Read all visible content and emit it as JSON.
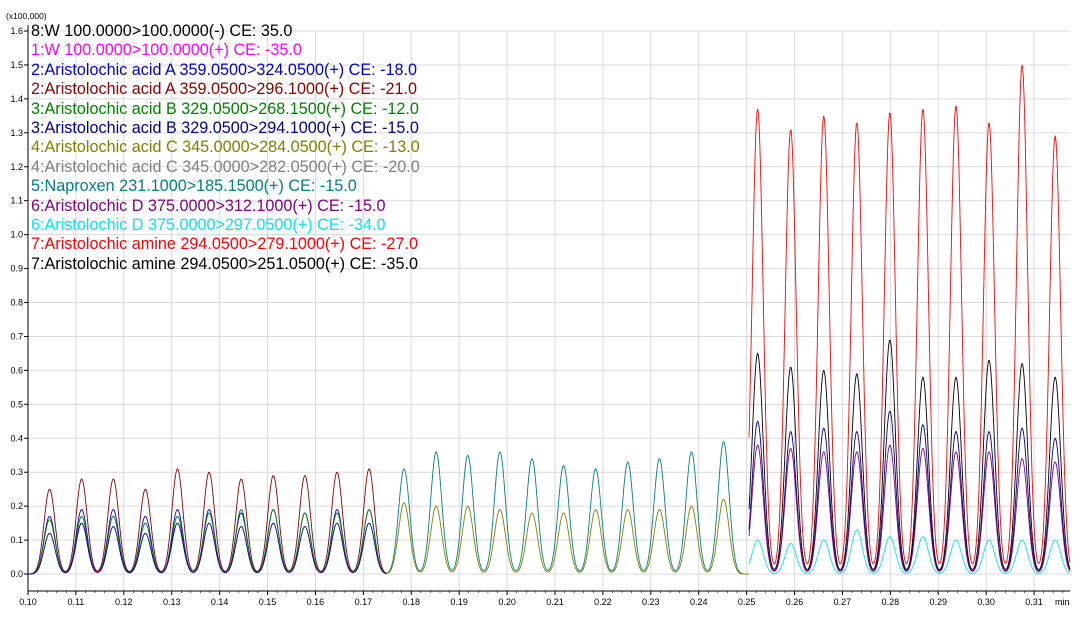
{
  "chart_data": {
    "type": "line",
    "multiplier_label": "(x100,000)",
    "x_unit_label": "min",
    "xlim": [
      0.1,
      0.3175
    ],
    "ylim": [
      -0.05,
      1.6
    ],
    "x_ticks": [
      "0.10",
      "0.11",
      "0.12",
      "0.13",
      "0.14",
      "0.15",
      "0.16",
      "0.17",
      "0.18",
      "0.19",
      "0.20",
      "0.21",
      "0.22",
      "0.23",
      "0.24",
      "0.25",
      "0.26",
      "0.27",
      "0.28",
      "0.29",
      "0.30",
      "0.31"
    ],
    "y_ticks": [
      "0.0",
      "0.1",
      "0.2",
      "0.3",
      "0.4",
      "0.5",
      "0.6",
      "0.7",
      "0.8",
      "0.9",
      "1.0",
      "1.1",
      "1.2",
      "1.3",
      "1.4",
      "1.5",
      "1.6"
    ],
    "grid": true,
    "legend": [
      {
        "label": "8:W 100.0000>100.0000(-) CE: 35.0",
        "color": "#000000"
      },
      {
        "label": "1:W 100.0000>100.0000(+) CE: -35.0",
        "color": "#ff00ff"
      },
      {
        "label": "2:Aristolochic acid A 359.0500>324.0500(+) CE: -18.0",
        "color": "#0000cc"
      },
      {
        "label": "2:Aristolochic acid A 359.0500>296.1000(+) CE: -21.0",
        "color": "#8b0000"
      },
      {
        "label": "3:Aristolochic acid B 329.0500>268.1500(+) CE: -12.0",
        "color": "#008000"
      },
      {
        "label": "3:Aristolochic acid B 329.0500>294.1000(+) CE: -15.0",
        "color": "#000080"
      },
      {
        "label": "4:Aristolochic acid C 345.0000>284.0500(+) CE: -13.0",
        "color": "#808000"
      },
      {
        "label": "4:Aristolochic acid C 345.0000>282.0500(+) CE: -20.0",
        "color": "#808080"
      },
      {
        "label": "5:Naproxen 231.1000>185.1500(+) CE: -15.0",
        "color": "#008080"
      },
      {
        "label": "6:Aristolochic D 375.0000>312.1000(+) CE: -15.0",
        "color": "#800080"
      },
      {
        "label": "6:Aristolochic D 375.0000>297.0500(+) CE: -34.0",
        "color": "#00e5ee"
      },
      {
        "label": "7:Aristolochic amine 294.0500>279.1000(+) CE: -27.0",
        "color": "#ff0000"
      },
      {
        "label": "7:Aristolochic amine 294.0500>251.0500(+) CE: -35.0",
        "color": "#000000"
      }
    ],
    "segments": [
      {
        "x_range": [
          0.1,
          0.1748
        ],
        "peak_x": [
          0.1045,
          0.1112,
          0.1178,
          0.1245,
          0.1312,
          0.1378,
          0.1445,
          0.1512,
          0.1578,
          0.1645,
          0.1712
        ],
        "series": [
          {
            "color": "#8b0000",
            "heights": [
              0.25,
              0.28,
              0.28,
              0.25,
              0.31,
              0.3,
              0.28,
              0.29,
              0.29,
              0.3,
              0.31
            ]
          },
          {
            "color": "#0000cc",
            "heights": [
              0.17,
              0.19,
              0.19,
              0.17,
              0.19,
              0.19,
              0.18,
              0.19,
              0.18,
              0.19,
              0.19
            ]
          },
          {
            "color": "#008000",
            "heights": [
              0.16,
              0.17,
              0.17,
              0.15,
              0.17,
              0.18,
              0.19,
              0.19,
              0.18,
              0.18,
              0.19
            ]
          },
          {
            "color": "#000080",
            "heights": [
              0.12,
              0.15,
              0.14,
              0.12,
              0.15,
              0.15,
              0.14,
              0.15,
              0.14,
              0.15,
              0.15
            ]
          }
        ]
      },
      {
        "x_range": [
          0.1748,
          0.2505
        ],
        "peak_x": [
          0.1785,
          0.1852,
          0.1918,
          0.1985,
          0.2052,
          0.2118,
          0.2185,
          0.2252,
          0.2318,
          0.2385,
          0.2452
        ],
        "series": [
          {
            "color": "#008080",
            "heights": [
              0.31,
              0.36,
              0.35,
              0.36,
              0.34,
              0.32,
              0.31,
              0.33,
              0.34,
              0.36,
              0.39
            ]
          },
          {
            "color": "#808000",
            "heights": [
              0.21,
              0.2,
              0.2,
              0.19,
              0.18,
              0.18,
              0.19,
              0.19,
              0.19,
              0.2,
              0.22
            ]
          }
        ]
      },
      {
        "x_range": [
          0.2505,
          0.3175
        ],
        "peak_x": [
          0.2523,
          0.2592,
          0.2661,
          0.273,
          0.2799,
          0.2868,
          0.2937,
          0.3006,
          0.3075,
          0.3144
        ],
        "series": [
          {
            "color": "#ff0000",
            "heights": [
              1.37,
              1.31,
              1.35,
              1.33,
              1.36,
              1.37,
              1.38,
              1.33,
              1.5,
              1.29
            ]
          },
          {
            "color": "#000000",
            "heights": [
              0.65,
              0.61,
              0.6,
              0.59,
              0.69,
              0.58,
              0.58,
              0.63,
              0.62,
              0.58
            ]
          },
          {
            "color": "#000080",
            "heights": [
              0.45,
              0.42,
              0.43,
              0.42,
              0.48,
              0.44,
              0.42,
              0.42,
              0.43,
              0.4
            ]
          },
          {
            "color": "#800080",
            "heights": [
              0.38,
              0.37,
              0.36,
              0.36,
              0.38,
              0.37,
              0.36,
              0.36,
              0.34,
              0.33
            ]
          },
          {
            "color": "#00e5ee",
            "heights": [
              0.1,
              0.09,
              0.1,
              0.13,
              0.11,
              0.11,
              0.1,
              0.1,
              0.1,
              0.1
            ]
          }
        ]
      }
    ]
  }
}
